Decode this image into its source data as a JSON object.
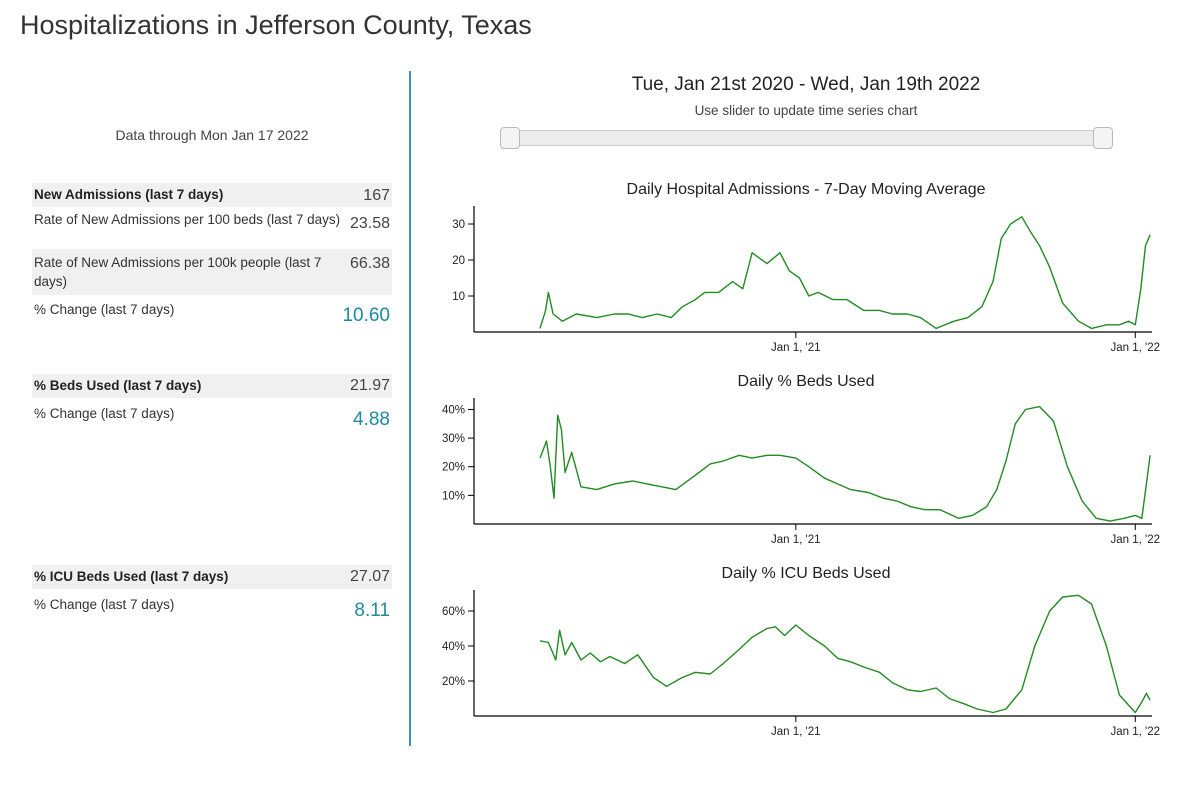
{
  "page": {
    "title": "Hospitalizations in Jefferson County, Texas"
  },
  "left": {
    "data_through": "Data through Mon Jan 17 2022",
    "admissions": {
      "label": "New Admissions (last 7 days)",
      "value": "167",
      "rate_beds_label": "Rate of New Admissions per 100 beds (last 7 days)",
      "rate_beds_value": "23.58",
      "rate_people_label": "Rate of New Admissions per 100k people (last 7 days)",
      "rate_people_value": "66.38",
      "change_label": "% Change (last 7 days)",
      "change_value": "10.60"
    },
    "beds": {
      "label": "% Beds Used (last 7 days)",
      "value": "21.97",
      "change_label": "% Change (last 7 days)",
      "change_value": "4.88"
    },
    "icu": {
      "label": "% ICU Beds Used (last 7 days)",
      "value": "27.07",
      "change_label": "% Change (last 7 days)",
      "change_value": "8.11"
    }
  },
  "right": {
    "range_title": "Tue, Jan 21st 2020 - Wed, Jan 19th 2022",
    "slider_hint": "Use slider to update time series chart"
  },
  "colors": {
    "line": "#228b22",
    "accent": "#1f8a9e",
    "divider": "#3a8fbf"
  },
  "chart_data": [
    {
      "type": "line",
      "title": "Daily Hospital Admissions - 7-Day Moving Average",
      "xlabel": "",
      "ylabel": "",
      "x_ticks": [
        "Jan 1, '21",
        "Jan 1, '22"
      ],
      "y_ticks": [
        "10",
        "20",
        "30"
      ],
      "ylim": [
        0,
        35
      ],
      "series": [
        {
          "x": [
            "2020-04-01",
            "2020-04-07",
            "2020-04-10",
            "2020-04-15",
            "2020-04-25",
            "2020-05-10",
            "2020-06-01",
            "2020-06-20",
            "2020-07-05",
            "2020-07-20",
            "2020-08-05",
            "2020-08-20",
            "2020-09-01",
            "2020-09-15",
            "2020-09-25",
            "2020-10-10",
            "2020-10-25",
            "2020-11-05",
            "2020-11-15",
            "2020-12-01",
            "2020-12-15",
            "2020-12-25",
            "2021-01-05",
            "2021-01-15",
            "2021-01-25",
            "2021-02-10",
            "2021-02-25",
            "2021-03-15",
            "2021-04-01",
            "2021-04-15",
            "2021-05-01",
            "2021-05-15",
            "2021-06-01",
            "2021-06-20",
            "2021-07-05",
            "2021-07-20",
            "2021-08-01",
            "2021-08-10",
            "2021-08-20",
            "2021-09-01",
            "2021-09-10",
            "2021-09-20",
            "2021-10-01",
            "2021-10-15",
            "2021-11-01",
            "2021-11-15",
            "2021-12-01",
            "2021-12-15",
            "2021-12-25",
            "2022-01-01",
            "2022-01-07",
            "2022-01-12",
            "2022-01-17"
          ],
          "values": [
            1,
            6,
            11,
            5,
            3,
            5,
            4,
            5,
            5,
            4,
            5,
            4,
            7,
            9,
            11,
            11,
            14,
            12,
            22,
            19,
            22,
            17,
            15,
            10,
            11,
            9,
            9,
            6,
            6,
            5,
            5,
            4,
            1,
            3,
            4,
            7,
            14,
            26,
            30,
            32,
            28,
            24,
            18,
            8,
            3,
            1,
            2,
            2,
            3,
            2,
            12,
            24,
            27
          ]
        }
      ]
    },
    {
      "type": "line",
      "title": "Daily % Beds Used",
      "xlabel": "",
      "ylabel": "",
      "x_ticks": [
        "Jan 1, '21",
        "Jan 1, '22"
      ],
      "y_ticks": [
        "10%",
        "20%",
        "30%",
        "40%"
      ],
      "ylim": [
        0,
        44
      ],
      "series": [
        {
          "x": [
            "2020-04-01",
            "2020-04-08",
            "2020-04-12",
            "2020-04-16",
            "2020-04-20",
            "2020-04-24",
            "2020-04-28",
            "2020-05-05",
            "2020-05-15",
            "2020-06-01",
            "2020-06-20",
            "2020-07-10",
            "2020-07-25",
            "2020-08-10",
            "2020-08-25",
            "2020-09-15",
            "2020-10-01",
            "2020-10-15",
            "2020-11-01",
            "2020-11-15",
            "2020-12-01",
            "2020-12-15",
            "2021-01-01",
            "2021-01-15",
            "2021-02-01",
            "2021-02-15",
            "2021-03-01",
            "2021-03-20",
            "2021-04-05",
            "2021-04-20",
            "2021-05-05",
            "2021-05-20",
            "2021-06-05",
            "2021-06-25",
            "2021-07-10",
            "2021-07-25",
            "2021-08-05",
            "2021-08-15",
            "2021-08-25",
            "2021-09-05",
            "2021-09-20",
            "2021-10-05",
            "2021-10-20",
            "2021-11-05",
            "2021-11-20",
            "2021-12-05",
            "2021-12-20",
            "2022-01-01",
            "2022-01-08",
            "2022-01-13",
            "2022-01-17"
          ],
          "values": [
            23,
            29,
            20,
            9,
            38,
            33,
            18,
            25,
            13,
            12,
            14,
            15,
            14,
            13,
            12,
            17,
            21,
            22,
            24,
            23,
            24,
            24,
            23,
            20,
            16,
            14,
            12,
            11,
            9,
            8,
            6,
            5,
            5,
            2,
            3,
            6,
            12,
            22,
            35,
            40,
            41,
            36,
            20,
            8,
            2,
            1,
            2,
            3,
            2,
            14,
            24
          ]
        }
      ]
    },
    {
      "type": "line",
      "title": "Daily % ICU Beds Used",
      "xlabel": "",
      "ylabel": "",
      "x_ticks": [
        "Jan 1, '21",
        "Jan 1, '22"
      ],
      "y_ticks": [
        "20%",
        "40%",
        "60%"
      ],
      "ylim": [
        0,
        72
      ],
      "series": [
        {
          "x": [
            "2020-04-01",
            "2020-04-10",
            "2020-04-18",
            "2020-04-22",
            "2020-04-28",
            "2020-05-05",
            "2020-05-15",
            "2020-05-25",
            "2020-06-05",
            "2020-06-15",
            "2020-07-01",
            "2020-07-15",
            "2020-08-01",
            "2020-08-15",
            "2020-09-01",
            "2020-09-15",
            "2020-10-01",
            "2020-10-15",
            "2020-11-01",
            "2020-11-15",
            "2020-12-01",
            "2020-12-10",
            "2020-12-20",
            "2021-01-01",
            "2021-01-15",
            "2021-02-01",
            "2021-02-15",
            "2021-03-01",
            "2021-03-15",
            "2021-04-01",
            "2021-04-15",
            "2021-05-01",
            "2021-05-15",
            "2021-06-01",
            "2021-06-15",
            "2021-07-01",
            "2021-07-15",
            "2021-08-01",
            "2021-08-15",
            "2021-09-01",
            "2021-09-15",
            "2021-10-01",
            "2021-10-15",
            "2021-11-01",
            "2021-11-15",
            "2021-12-01",
            "2021-12-15",
            "2022-01-01",
            "2022-01-08",
            "2022-01-13",
            "2022-01-17"
          ],
          "values": [
            43,
            42,
            32,
            49,
            35,
            42,
            32,
            36,
            31,
            34,
            30,
            35,
            22,
            17,
            22,
            25,
            24,
            30,
            38,
            45,
            50,
            51,
            46,
            52,
            46,
            40,
            33,
            31,
            28,
            25,
            19,
            15,
            14,
            16,
            10,
            7,
            4,
            2,
            4,
            15,
            40,
            60,
            68,
            69,
            64,
            40,
            12,
            2,
            8,
            13,
            9
          ]
        }
      ]
    }
  ]
}
